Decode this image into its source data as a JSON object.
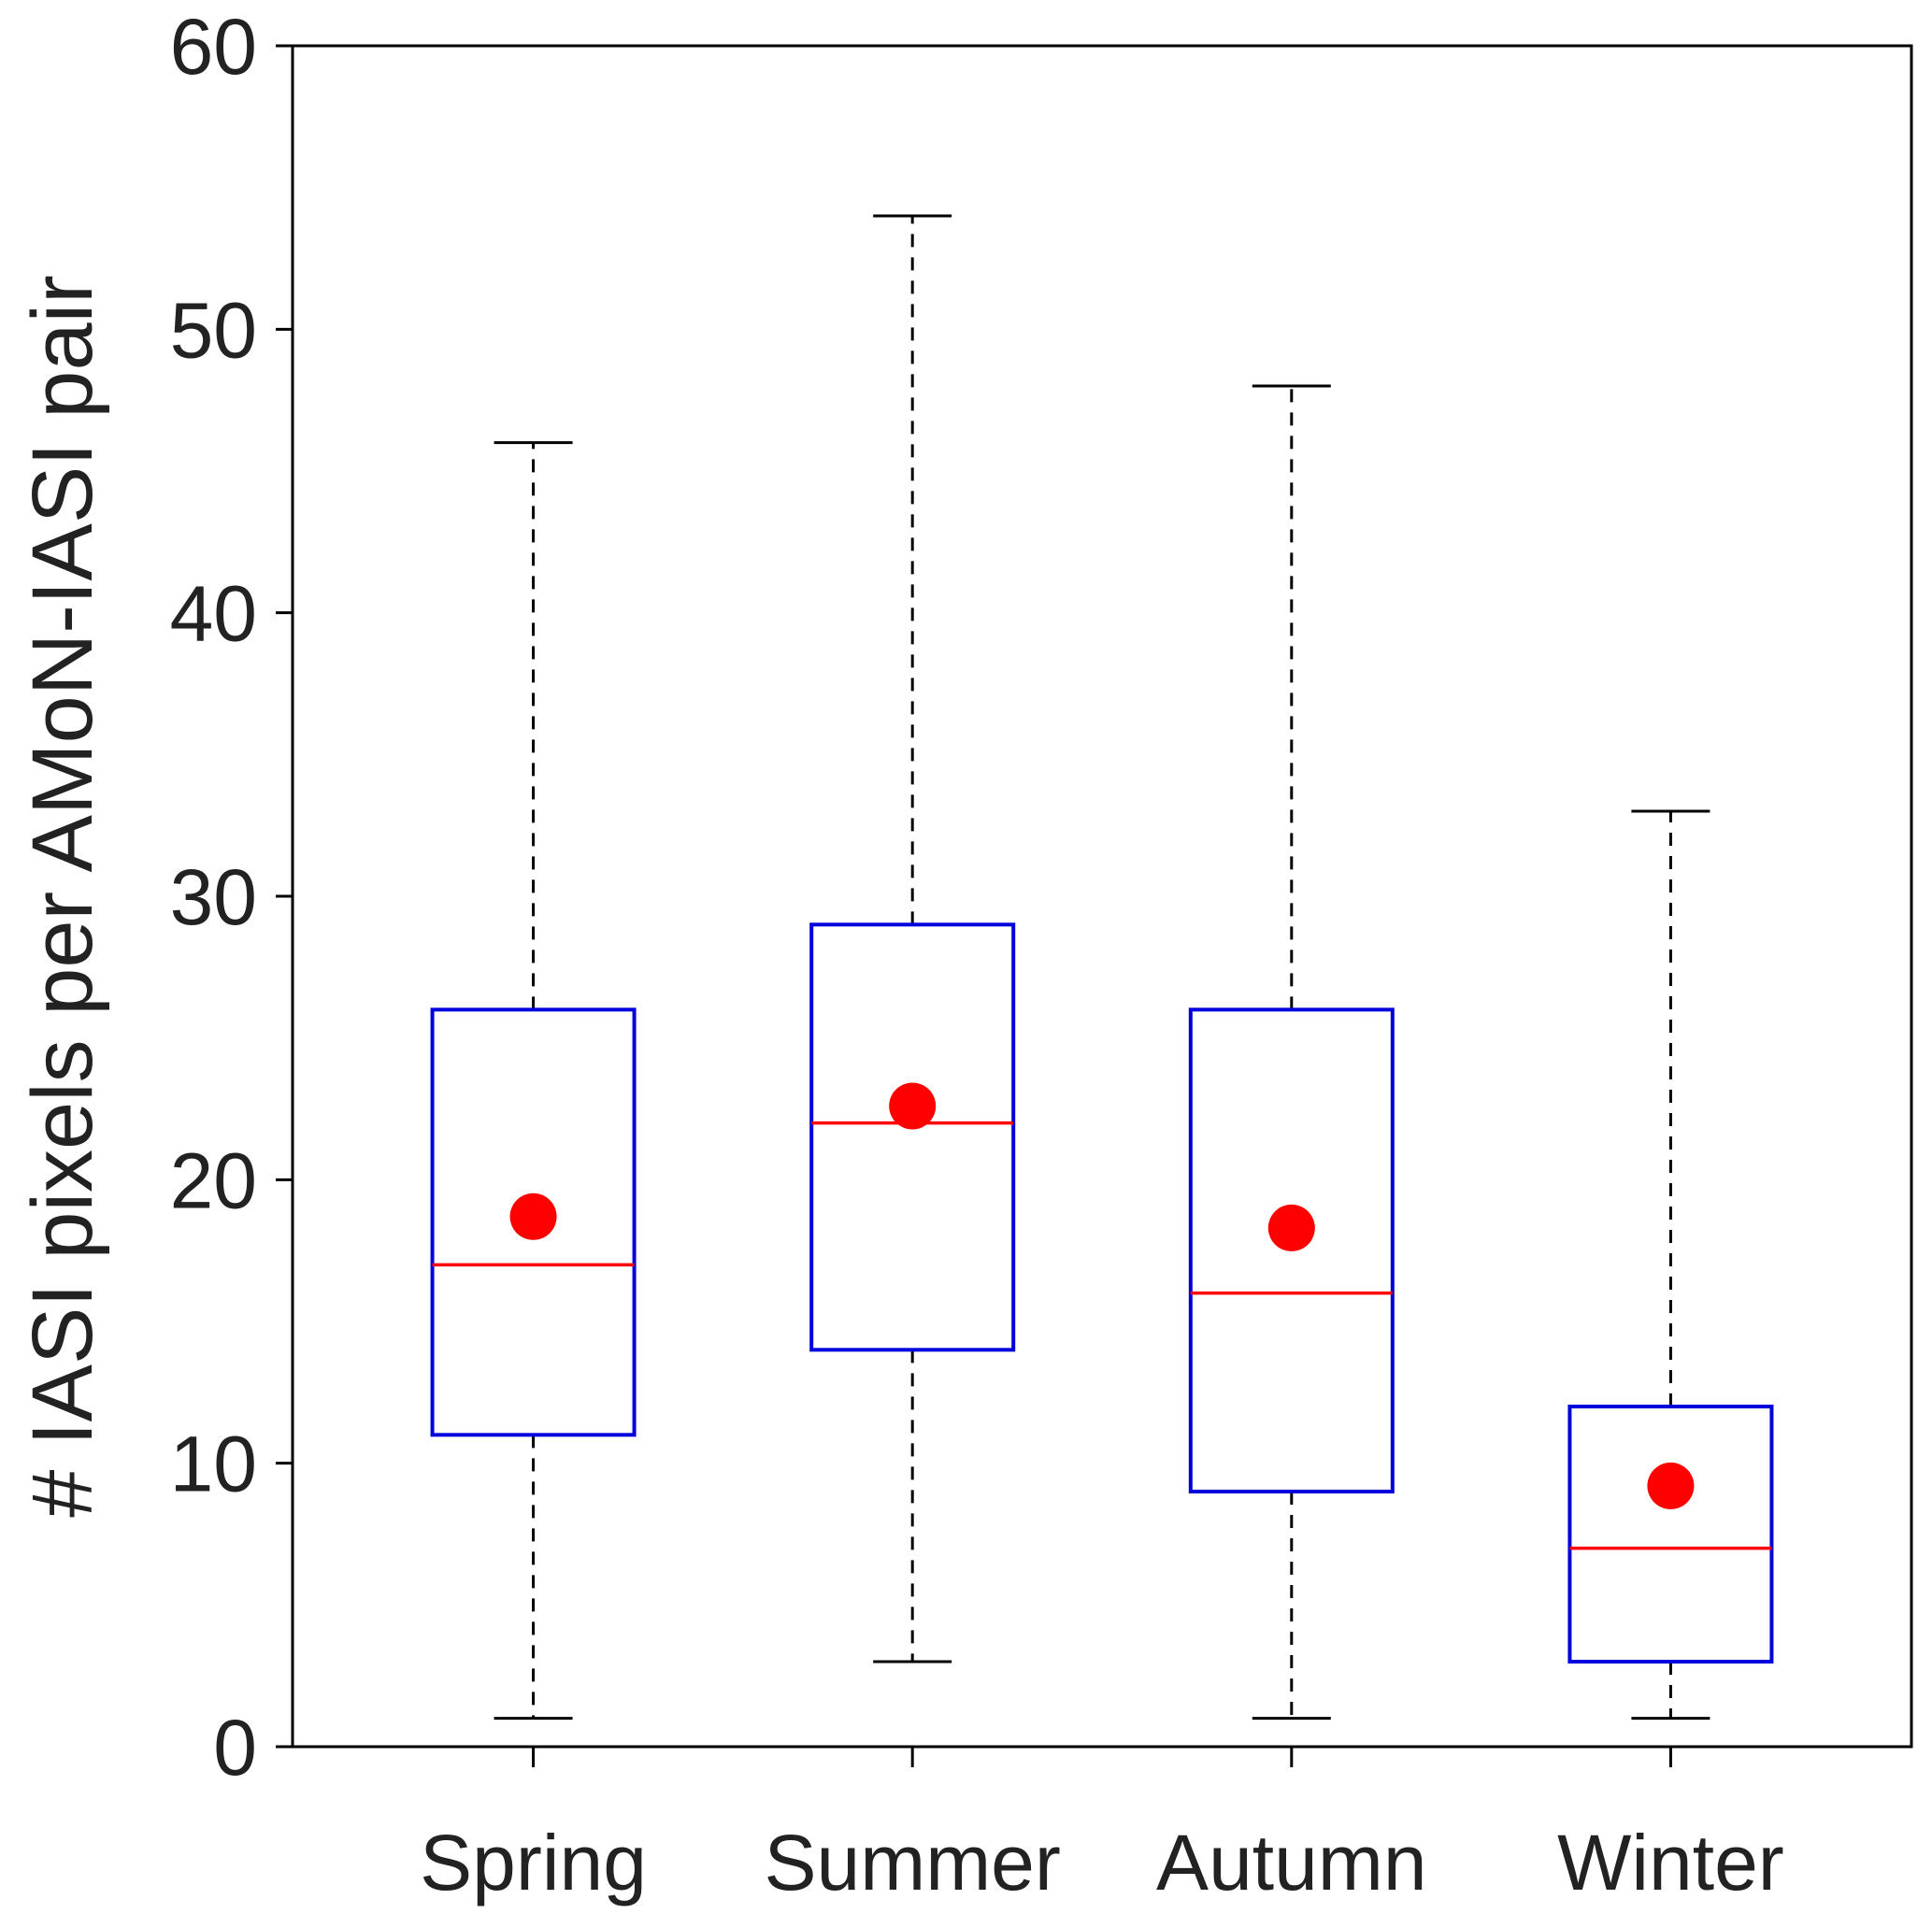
{
  "chart_data": {
    "type": "box",
    "title": "",
    "xlabel": "",
    "ylabel": "# IASI pixels per AMoN-IASI pair",
    "ylim": [
      0,
      60
    ],
    "yticks": [
      0,
      10,
      20,
      30,
      40,
      50,
      60
    ],
    "categories": [
      "Spring",
      "Summer",
      "Autumn",
      "Winter"
    ],
    "boxes": [
      {
        "category": "Spring",
        "whisker_low": 1,
        "q1": 11,
        "median": 17,
        "q3": 26,
        "whisker_high": 46,
        "mean": 18.7
      },
      {
        "category": "Summer",
        "whisker_low": 3,
        "q1": 14,
        "median": 22,
        "q3": 29,
        "whisker_high": 54,
        "mean": 22.6
      },
      {
        "category": "Autumn",
        "whisker_low": 1,
        "q1": 9,
        "median": 16,
        "q3": 26,
        "whisker_high": 48,
        "mean": 18.3
      },
      {
        "category": "Winter",
        "whisker_low": 1,
        "q1": 3,
        "median": 7,
        "q3": 12,
        "whisker_high": 33,
        "mean": 9.2
      }
    ],
    "grid": false,
    "legend": "none",
    "colors": {
      "box": "#0000dd",
      "median": "#ff0000",
      "mean": "#ff0000",
      "whisker": "#000000",
      "axis": "#000000"
    }
  }
}
